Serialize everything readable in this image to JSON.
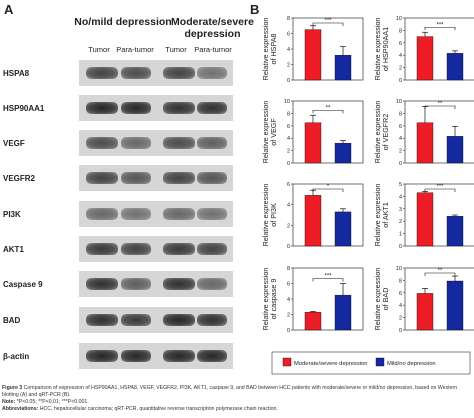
{
  "panel_a": {
    "letter": "A",
    "group1": "No/mild depression",
    "group2": "Moderate/severe depression",
    "lanes": [
      "Tumor",
      "Para-tumor",
      "Tumor",
      "Para-tumor"
    ],
    "proteins": [
      "HSPA8",
      "HSP90AA1",
      "VEGF",
      "VEGFR2",
      "PI3K",
      "AKT1",
      "Caspase 9",
      "BAD",
      "β-actin"
    ]
  },
  "panel_b": {
    "letter": "B"
  },
  "chart_data": [
    {
      "type": "bar",
      "ylabel": "Relative expression of HSPA8",
      "categories": [
        "Moderate/severe depression",
        "Mild/no depression"
      ],
      "values": [
        6.5,
        3.2
      ],
      "errors": [
        0.5,
        1.1
      ],
      "ylim": [
        0,
        8
      ],
      "yticks": [
        "0",
        "2",
        "4",
        "6",
        "8"
      ],
      "sig": "***"
    },
    {
      "type": "bar",
      "ylabel": "Relative expression of HSP90AA1",
      "categories": [
        "Moderate/severe depression",
        "Mild/no depression"
      ],
      "values": [
        7.0,
        4.3
      ],
      "errors": [
        0.7,
        0.4
      ],
      "ylim": [
        0,
        10
      ],
      "yticks": [
        "0",
        "2",
        "4",
        "6",
        "8",
        "10"
      ],
      "sig": "***"
    },
    {
      "type": "bar",
      "ylabel": "Relative expression of VEGF",
      "categories": [
        "Moderate/severe depression",
        "Mild/no depression"
      ],
      "values": [
        6.5,
        3.2
      ],
      "errors": [
        1.2,
        0.4
      ],
      "ylim": [
        0,
        10
      ],
      "yticks": [
        "0",
        "2",
        "4",
        "6",
        "8",
        "10"
      ],
      "sig": "**"
    },
    {
      "type": "bar",
      "ylabel": "Relative expression of VEGFR2",
      "categories": [
        "Moderate/severe depression",
        "Mild/no depression"
      ],
      "values": [
        6.5,
        4.3
      ],
      "errors": [
        2.6,
        1.6
      ],
      "ylim": [
        0,
        10
      ],
      "yticks": [
        "0",
        "2",
        "4",
        "6",
        "8",
        "10"
      ],
      "sig": "**"
    },
    {
      "type": "bar",
      "ylabel": "Relative expression of PI3K",
      "categories": [
        "Moderate/severe depression",
        "Mild/no depression"
      ],
      "values": [
        4.9,
        3.3
      ],
      "errors": [
        0.5,
        0.3
      ],
      "ylim": [
        0,
        6
      ],
      "yticks": [
        "0",
        "2",
        "4",
        "6"
      ],
      "sig": "*"
    },
    {
      "type": "bar",
      "ylabel": "Relative expression of AKT1",
      "categories": [
        "Moderate/severe depression",
        "Mild/no depression"
      ],
      "values": [
        4.3,
        2.4
      ],
      "errors": [
        0.1,
        0.1
      ],
      "ylim": [
        0,
        5
      ],
      "yticks": [
        "0",
        "1",
        "2",
        "3",
        "4",
        "5"
      ],
      "sig": "***"
    },
    {
      "type": "bar",
      "ylabel": "Relative expression of caspase 9",
      "categories": [
        "Moderate/severe depression",
        "Mild/no depression"
      ],
      "values": [
        2.3,
        4.5
      ],
      "errors": [
        0.1,
        1.5
      ],
      "ylim": [
        0,
        8
      ],
      "yticks": [
        "0",
        "2",
        "4",
        "6",
        "8"
      ],
      "sig": "***"
    },
    {
      "type": "bar",
      "ylabel": "Relative expression of BAD",
      "categories": [
        "Moderate/severe depression",
        "Mild/no depression"
      ],
      "values": [
        5.9,
        7.9
      ],
      "errors": [
        0.8,
        0.8
      ],
      "ylim": [
        0,
        10
      ],
      "yticks": [
        "0",
        "2",
        "4",
        "6",
        "8",
        "10"
      ],
      "sig": "**"
    }
  ],
  "legend": {
    "items": [
      {
        "label": "Moderate/severe depression",
        "color": "#ee1c24"
      },
      {
        "label": "Mild/no depression",
        "color": "#1428a0"
      }
    ]
  },
  "colors": {
    "bar1": "#ee1c24",
    "bar2": "#1428a0",
    "blot_bg": "#d6d6d6"
  },
  "caption": {
    "figure_label": "Figure 3",
    "figure_text": "Comparison of expression of HSP90AA1, HSPA8, VEGF, VEGFR2, PI3K, AKT1, caspase 9, and BAD between HCC patients with moderate/severe or mild/no depression, based on Western blotting (A) and qRT-PCR (B).",
    "note_label": "Note:",
    "note_text": "*P<0.05; **P<0.01; ***P<0.001.",
    "abbr_label": "Abbreviations:",
    "abbr_text": "HCC, hepatocellular carcinoma; qRT-PCR, quantitative reverse transcription polymerase chain reaction."
  }
}
